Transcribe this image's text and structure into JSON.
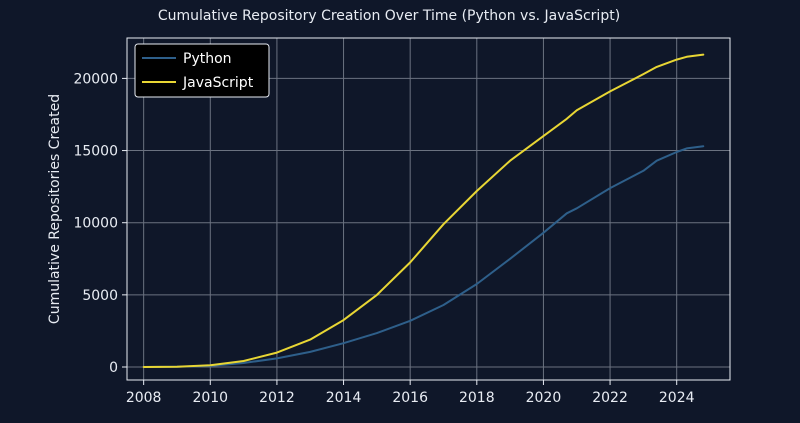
{
  "colors": {
    "background": "#0f1729",
    "grid": "#6b7280",
    "frame": "#e8ecf3",
    "text": "#e8ecf3",
    "legend_bg": "#000000",
    "legend_border": "#e8ecf3"
  },
  "chart_data": {
    "type": "line",
    "title": "Cumulative Repository Creation Over Time (Python vs. JavaScript)",
    "xlabel": "",
    "ylabel": "Cumulative Repositories Created",
    "xlim": [
      2007.5,
      2025.6
    ],
    "ylim": [
      -900,
      22800
    ],
    "xticks": [
      2008,
      2010,
      2012,
      2014,
      2016,
      2018,
      2020,
      2022,
      2024
    ],
    "yticks": [
      0,
      5000,
      10000,
      15000,
      20000
    ],
    "ytick_labels": [
      "0",
      "5000",
      "10000",
      "15000",
      "20000"
    ],
    "grid": true,
    "legend_position": "top-left",
    "series": [
      {
        "name": "Python",
        "color": "#2e5f8a",
        "x": [
          2008.0,
          2009.0,
          2010.0,
          2011.0,
          2012.0,
          2013.0,
          2014.0,
          2015.0,
          2016.0,
          2017.0,
          2018.0,
          2019.0,
          2020.0,
          2020.7,
          2021.0,
          2022.0,
          2023.0,
          2023.4,
          2024.0,
          2024.3,
          2024.8
        ],
        "y": [
          0,
          20,
          80,
          280,
          600,
          1050,
          1650,
          2350,
          3200,
          4300,
          5750,
          7500,
          9300,
          10650,
          11000,
          12400,
          13600,
          14300,
          14900,
          15150,
          15300
        ]
      },
      {
        "name": "JavaScript",
        "color": "#e8d634",
        "x": [
          2008.0,
          2009.0,
          2010.0,
          2011.0,
          2012.0,
          2013.0,
          2014.0,
          2015.0,
          2016.0,
          2017.0,
          2018.0,
          2019.0,
          2020.0,
          2020.7,
          2021.0,
          2022.0,
          2023.0,
          2023.4,
          2024.0,
          2024.3,
          2024.8
        ],
        "y": [
          0,
          25,
          120,
          420,
          1000,
          1900,
          3250,
          5000,
          7250,
          9900,
          12200,
          14300,
          16000,
          17200,
          17800,
          19100,
          20300,
          20800,
          21300,
          21500,
          21650
        ]
      }
    ]
  }
}
